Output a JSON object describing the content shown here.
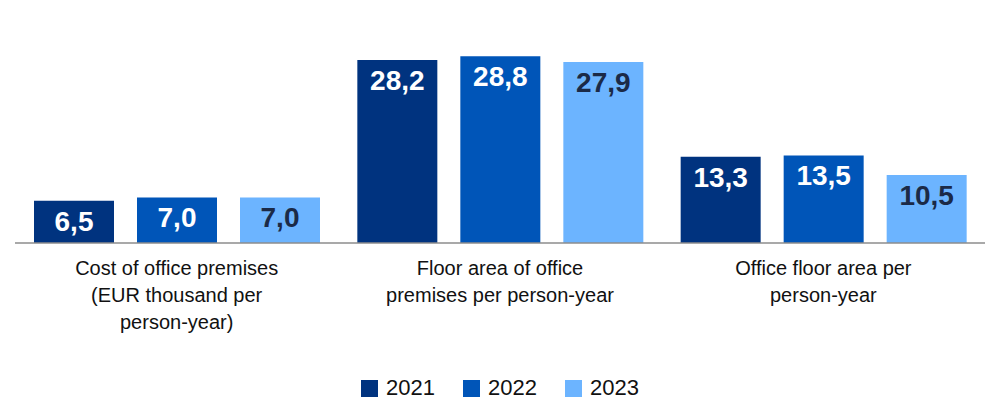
{
  "chart_data": {
    "type": "bar",
    "categories": [
      "Cost of office premises (EUR thousand per person-year)",
      "Floor area of office premises per person-year",
      "Office floor area per person-year"
    ],
    "series": [
      {
        "name": "2021",
        "color": "#00337f",
        "values": [
          6.5,
          28.2,
          13.3
        ],
        "value_labels": [
          "6,5",
          "28,2",
          "13,3"
        ]
      },
      {
        "name": "2022",
        "color": "#0055b8",
        "values": [
          7.0,
          28.8,
          13.5
        ],
        "value_labels": [
          "7,0",
          "28,8",
          "13,5"
        ]
      },
      {
        "name": "2023",
        "color": "#6cb4ff",
        "values": [
          7.0,
          27.9,
          10.5
        ],
        "value_labels": [
          "7,0",
          "27,9",
          "10,5"
        ]
      }
    ],
    "ylim": [
      0,
      37
    ],
    "data_labels": true,
    "tick_labels": "x",
    "legend": "bottom"
  }
}
